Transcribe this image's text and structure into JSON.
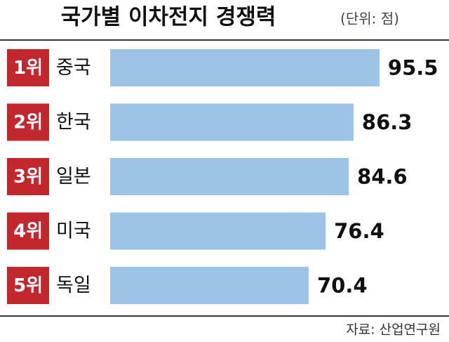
{
  "chart_data": {
    "type": "bar",
    "orientation": "horizontal",
    "title": "국가별 이차전지 경쟁력",
    "subtitle": "(단위: 점)",
    "ranks": [
      "1위",
      "2위",
      "3위",
      "4위",
      "5위"
    ],
    "categories": [
      "중국",
      "한국",
      "일본",
      "미국",
      "독일"
    ],
    "values": [
      95.5,
      86.3,
      84.6,
      76.4,
      70.4
    ],
    "color": "#9dc3e6",
    "rank_color": "#c1272d",
    "source": "자료: 산업연구원"
  }
}
